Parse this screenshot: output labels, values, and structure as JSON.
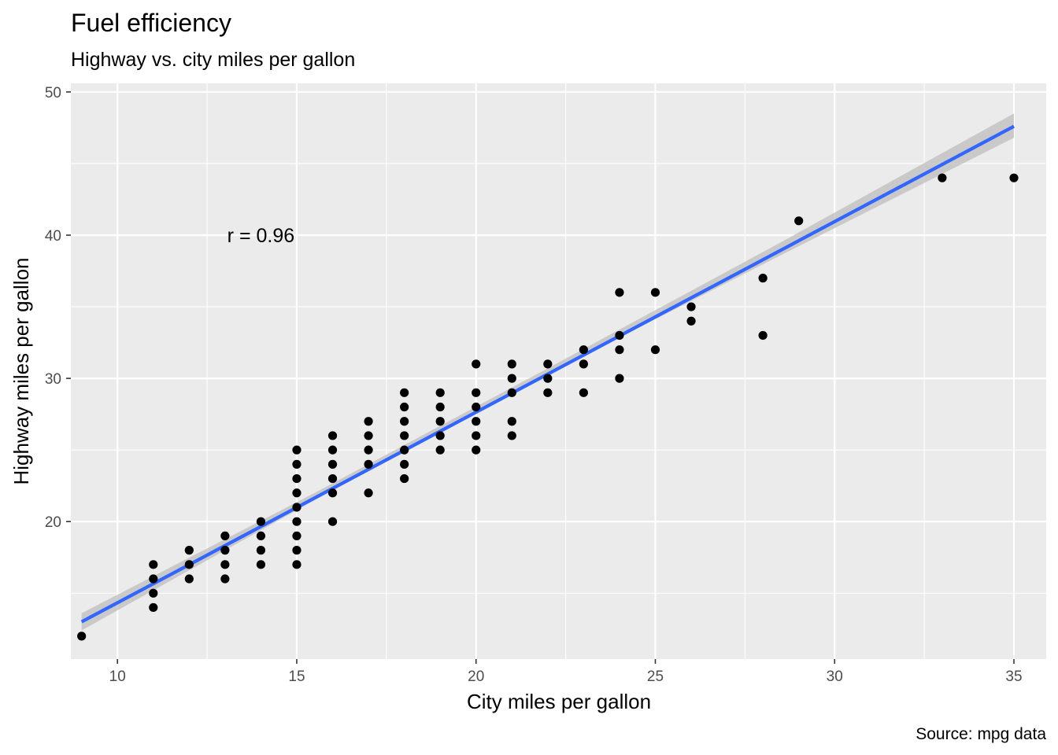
{
  "chart_data": {
    "type": "scatter",
    "title": "Fuel efficiency",
    "subtitle": "Highway vs. city miles per gallon",
    "xlabel": "City miles per gallon",
    "ylabel": "Highway miles per gallon",
    "caption": "Source: mpg data",
    "xlim": [
      8.7,
      35.9
    ],
    "ylim": [
      10.4,
      50.6
    ],
    "xticks": [
      10,
      15,
      20,
      25,
      30,
      35
    ],
    "yticks": [
      20,
      30,
      40,
      50
    ],
    "x_tick_labels": [
      "10",
      "15",
      "20",
      "25",
      "30",
      "35"
    ],
    "y_tick_labels": [
      "20",
      "30",
      "40",
      "50"
    ],
    "grid": true,
    "background": "#ebebeb",
    "point_color": "#000000",
    "annotation": {
      "text": "r = 0.96",
      "x": 14.0,
      "y": 40
    },
    "points": [
      [
        9,
        12
      ],
      [
        11,
        14
      ],
      [
        11,
        15
      ],
      [
        11,
        16
      ],
      [
        11,
        17
      ],
      [
        12,
        16
      ],
      [
        12,
        17
      ],
      [
        12,
        18
      ],
      [
        13,
        16
      ],
      [
        13,
        17
      ],
      [
        13,
        18
      ],
      [
        13,
        19
      ],
      [
        14,
        17
      ],
      [
        14,
        18
      ],
      [
        14,
        19
      ],
      [
        14,
        20
      ],
      [
        15,
        17
      ],
      [
        15,
        18
      ],
      [
        15,
        19
      ],
      [
        15,
        20
      ],
      [
        15,
        21
      ],
      [
        15,
        22
      ],
      [
        15,
        23
      ],
      [
        15,
        24
      ],
      [
        15,
        25
      ],
      [
        16,
        20
      ],
      [
        16,
        22
      ],
      [
        16,
        23
      ],
      [
        16,
        24
      ],
      [
        16,
        25
      ],
      [
        16,
        26
      ],
      [
        17,
        22
      ],
      [
        17,
        24
      ],
      [
        17,
        25
      ],
      [
        17,
        26
      ],
      [
        17,
        27
      ],
      [
        18,
        23
      ],
      [
        18,
        24
      ],
      [
        18,
        25
      ],
      [
        18,
        26
      ],
      [
        18,
        27
      ],
      [
        18,
        28
      ],
      [
        18,
        29
      ],
      [
        19,
        25
      ],
      [
        19,
        26
      ],
      [
        19,
        27
      ],
      [
        19,
        28
      ],
      [
        19,
        29
      ],
      [
        20,
        25
      ],
      [
        20,
        26
      ],
      [
        20,
        27
      ],
      [
        20,
        28
      ],
      [
        20,
        29
      ],
      [
        20,
        31
      ],
      [
        21,
        26
      ],
      [
        21,
        27
      ],
      [
        21,
        29
      ],
      [
        21,
        30
      ],
      [
        21,
        31
      ],
      [
        22,
        29
      ],
      [
        22,
        30
      ],
      [
        22,
        31
      ],
      [
        23,
        29
      ],
      [
        23,
        31
      ],
      [
        23,
        32
      ],
      [
        24,
        30
      ],
      [
        24,
        32
      ],
      [
        24,
        33
      ],
      [
        24,
        36
      ],
      [
        25,
        32
      ],
      [
        25,
        36
      ],
      [
        26,
        34
      ],
      [
        26,
        35
      ],
      [
        28,
        33
      ],
      [
        28,
        37
      ],
      [
        29,
        41
      ],
      [
        33,
        44
      ],
      [
        35,
        44
      ]
    ],
    "regression": {
      "method": "lm",
      "color": "#3366ff",
      "ci_color": "#bebebe",
      "x_start": 9,
      "x_end": 35,
      "y_start": 13.0,
      "y_end": 47.6,
      "ci": [
        {
          "x": 9,
          "lo": 12.4,
          "hi": 13.6
        },
        {
          "x": 15.5,
          "lo": 21.5,
          "hi": 22.0
        },
        {
          "x": 22,
          "lo": 30.3,
          "hi": 30.7
        },
        {
          "x": 28.5,
          "lo": 38.6,
          "hi": 39.5
        },
        {
          "x": 35,
          "lo": 46.8,
          "hi": 48.5
        }
      ]
    }
  }
}
